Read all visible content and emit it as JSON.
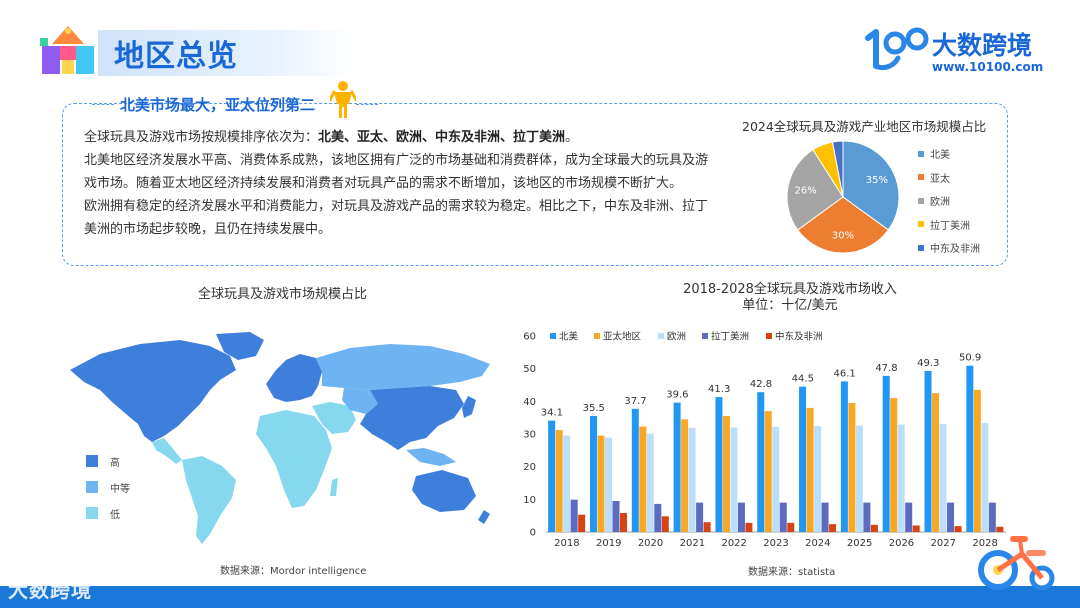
{
  "header": {
    "title": "地区总览",
    "logo_name": "大数跨境",
    "logo_url": "www.10100.com"
  },
  "summary": {
    "heading": "北美市场最大，亚太位列第二",
    "para1_prefix": "全球玩具及游戏市场按规模排序依次为：",
    "para1_bold": "北美、亚太、欧洲、中东及非洲、拉丁美洲",
    "para1_suffix": "。",
    "para2_line1": "北美地区经济发展水平高、消费体系成熟，该地区拥有广泛的市场基础和消费群体，成为全球最大的玩具及游",
    "para2_line2": "戏市场。随着亚太地区经济持续发展和消费者对玩具产品的需求不断增加，该地区的市场规模不断扩大。",
    "para3_line1": "欧洲拥有稳定的经济发展水平和消费能力，对玩具及游戏产品的需求较为稳定。相比之下，中东及非洲、拉丁",
    "para3_line2": "美洲的市场起步较晚，且仍在持续发展中。"
  },
  "map": {
    "title": "全球玩具及游戏市场规模占比",
    "legend": [
      {
        "label": "高",
        "color": "#3f7fdc"
      },
      {
        "label": "中等",
        "color": "#6eb3f2"
      },
      {
        "label": "低",
        "color": "#86d8ef"
      }
    ],
    "source": "数据来源：Mordor intelligence"
  },
  "footer": {
    "watermark": "大数跨境"
  },
  "chart_data": [
    {
      "type": "pie",
      "title": "2024全球玩具及游戏产业地区市场规模占比",
      "labels": [
        "北美",
        "亚太",
        "欧洲",
        "拉丁美洲",
        "中东及非洲"
      ],
      "values": [
        35,
        30,
        26,
        6,
        3
      ],
      "data_labels": [
        "35%",
        "30%",
        "26%",
        "",
        ""
      ],
      "colors": [
        "#5b9bd5",
        "#ed7d31",
        "#a5a5a5",
        "#ffc000",
        "#4472c4"
      ],
      "legend": "right"
    },
    {
      "type": "bar",
      "title": "2018-2028全球玩具及游戏市场收入",
      "subtitle": "单位：十亿/美元",
      "categories": [
        "2018",
        "2019",
        "2020",
        "2021",
        "2022",
        "2023",
        "2024",
        "2025",
        "2026",
        "2027",
        "2028"
      ],
      "series": [
        {
          "name": "北美",
          "color": "#2196f3",
          "values": [
            34.1,
            35.5,
            37.7,
            39.6,
            41.3,
            42.8,
            44.5,
            46.1,
            47.8,
            49.3,
            50.9
          ]
        },
        {
          "name": "亚太地区",
          "color": "#f9a825",
          "values": [
            31.2,
            29.5,
            32.3,
            34.5,
            35.5,
            37,
            38,
            39.5,
            41,
            42.5,
            43.5
          ]
        },
        {
          "name": "欧洲",
          "color": "#bbdefb",
          "values": [
            29.5,
            28.9,
            30.1,
            31.9,
            32,
            32.2,
            32.4,
            32.6,
            32.9,
            33.1,
            33.4
          ]
        },
        {
          "name": "拉丁美洲",
          "color": "#5c6bc0",
          "values": [
            9.9,
            9.5,
            8.6,
            9,
            9,
            9,
            9,
            9,
            9,
            9,
            9
          ]
        },
        {
          "name": "中东及非洲",
          "color": "#d84315",
          "values": [
            5.3,
            5.8,
            4.8,
            3,
            2.8,
            2.8,
            2.4,
            2.2,
            2,
            1.8,
            1.6
          ]
        }
      ],
      "data_labels": [
        "34.1",
        "35.5",
        "37.7",
        "39.6",
        "41.3",
        "42.8",
        "44.5",
        "46.1",
        "47.8",
        "49.3",
        "50.9"
      ],
      "ylim": [
        0,
        60
      ],
      "yticks": [
        "0",
        "10",
        "20",
        "30",
        "40",
        "50",
        "60"
      ],
      "grid": false,
      "legend": "top",
      "source": "数据来源：statista"
    }
  ]
}
